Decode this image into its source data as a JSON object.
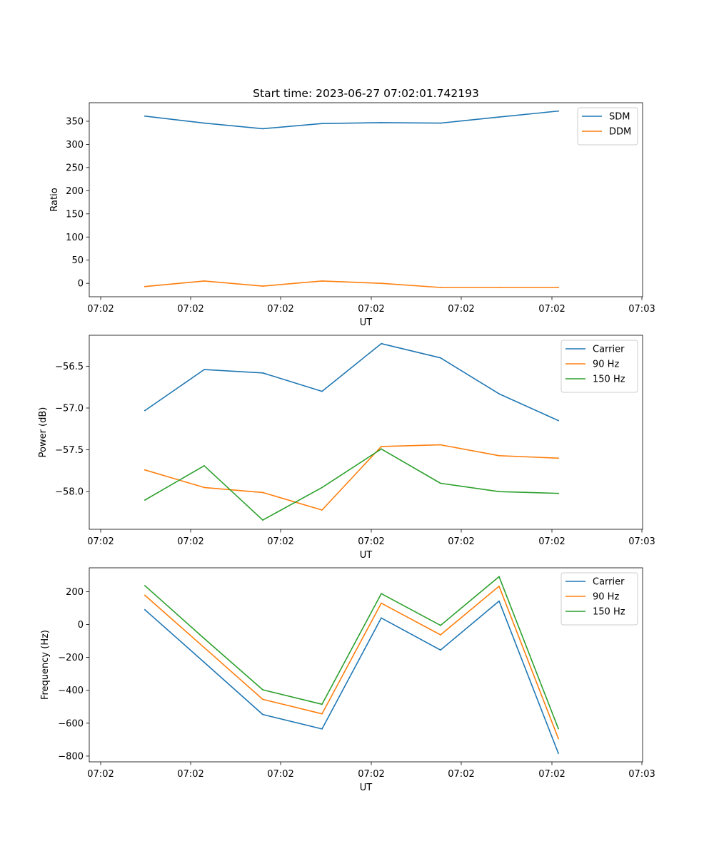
{
  "figure": {
    "title": "Start time: 2023-06-27 07:02:01.742193"
  },
  "colors": {
    "series1": "#1f77b4",
    "series2": "#ff7f0e",
    "series3": "#2ca02c"
  },
  "chart_data": [
    {
      "type": "line",
      "title": "Start time: 2023-06-27 07:02:01.742193",
      "xlabel": "UT",
      "ylabel": "Ratio",
      "x_tick_labels": [
        "07:02",
        "07:02",
        "07:02",
        "07:02",
        "07:02",
        "07:02",
        "07:03"
      ],
      "ylim": [
        -29,
        390
      ],
      "y_ticks": [
        0,
        50,
        100,
        150,
        200,
        250,
        300,
        350
      ],
      "grid": false,
      "legend_position": "top-right",
      "series": [
        {
          "name": "SDM",
          "values": [
            361,
            346,
            334,
            345,
            347,
            346,
            359,
            372
          ]
        },
        {
          "name": "DDM",
          "values": [
            -7,
            5,
            -6,
            5,
            0,
            -9,
            -9,
            -9
          ]
        }
      ]
    },
    {
      "type": "line",
      "xlabel": "UT",
      "ylabel": "Power (dB)",
      "x_tick_labels": [
        "07:02",
        "07:02",
        "07:02",
        "07:02",
        "07:02",
        "07:02",
        "07:03"
      ],
      "ylim": [
        -58.45,
        -56.13
      ],
      "y_ticks": [
        -58.0,
        -57.5,
        -57.0,
        -56.5
      ],
      "y_tick_labels": [
        "−58.0",
        "−57.5",
        "−57.0",
        "−56.5"
      ],
      "grid": false,
      "legend_position": "top-right",
      "series": [
        {
          "name": "Carrier",
          "values": [
            -57.03,
            -56.54,
            -56.58,
            -56.8,
            -56.23,
            -56.4,
            -56.83,
            -57.15
          ]
        },
        {
          "name": "90 Hz",
          "values": [
            -57.74,
            -57.95,
            -58.01,
            -58.22,
            -57.46,
            -57.44,
            -57.57,
            -57.6
          ]
        },
        {
          "name": "150 Hz",
          "values": [
            -58.1,
            -57.69,
            -58.34,
            -57.95,
            -57.49,
            -57.9,
            -58.0,
            -58.02
          ]
        }
      ]
    },
    {
      "type": "line",
      "xlabel": "UT",
      "ylabel": "Frequency (Hz)",
      "x_tick_labels": [
        "07:02",
        "07:02",
        "07:02",
        "07:02",
        "07:02",
        "07:02",
        "07:03"
      ],
      "ylim": [
        -835,
        345
      ],
      "y_ticks": [
        -800,
        -600,
        -400,
        -200,
        0,
        200
      ],
      "y_tick_labels": [
        "−800",
        "−600",
        "−400",
        "−200",
        "0",
        "200"
      ],
      "grid": false,
      "legend_position": "top-right",
      "series": [
        {
          "name": "Carrier",
          "values": [
            90,
            -230,
            -547,
            -635,
            40,
            -155,
            143,
            -783
          ]
        },
        {
          "name": "90 Hz",
          "values": [
            178,
            -140,
            -455,
            -543,
            130,
            -63,
            233,
            -693
          ]
        },
        {
          "name": "150 Hz",
          "values": [
            236,
            -85,
            -397,
            -485,
            188,
            -5,
            291,
            -633
          ]
        }
      ]
    }
  ]
}
